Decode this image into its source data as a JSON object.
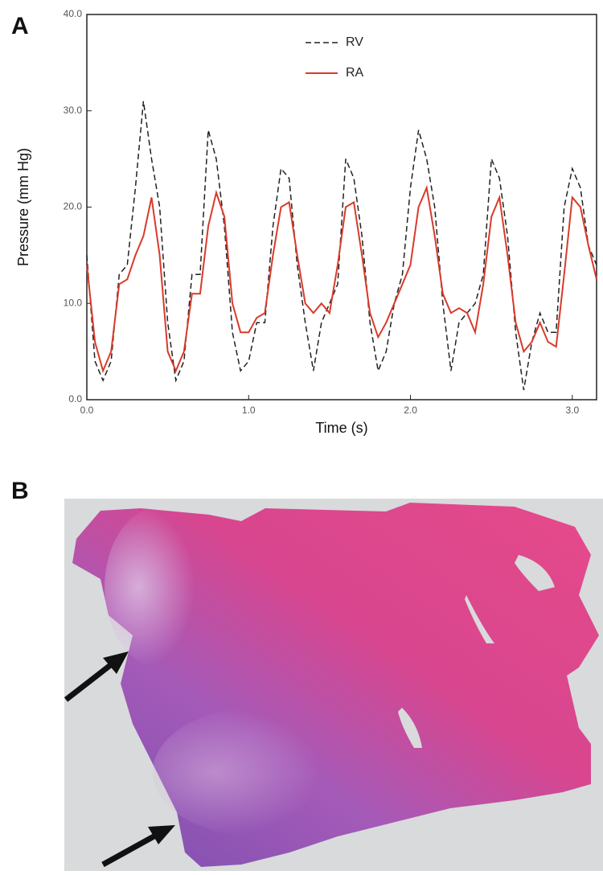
{
  "panel_labels": [
    "A",
    "B"
  ],
  "chart_data": {
    "type": "line",
    "xlabel": "Time (s)",
    "ylabel": "Pressure (mm Hg)",
    "x": [
      0,
      0.05,
      0.1,
      0.15,
      0.2,
      0.25,
      0.3,
      0.35,
      0.4,
      0.45,
      0.5,
      0.55,
      0.6,
      0.65,
      0.7,
      0.75,
      0.8,
      0.85,
      0.9,
      0.95,
      1.0,
      1.05,
      1.1,
      1.15,
      1.2,
      1.25,
      1.3,
      1.35,
      1.4,
      1.45,
      1.5,
      1.55,
      1.6,
      1.65,
      1.7,
      1.75,
      1.8,
      1.85,
      1.9,
      1.95,
      2.0,
      2.05,
      2.1,
      2.15,
      2.2,
      2.25,
      2.3,
      2.35,
      2.4,
      2.45,
      2.5,
      2.55,
      2.6,
      2.65,
      2.7,
      2.75,
      2.8,
      2.85,
      2.9,
      2.95,
      3.0,
      3.05,
      3.1,
      3.15
    ],
    "series": [
      {
        "name": "RV",
        "color": "#222222",
        "dash": true,
        "values": [
          15,
          4,
          2,
          4,
          13,
          14,
          22,
          31,
          25,
          20,
          8,
          2,
          4,
          13,
          13,
          28,
          25,
          18,
          7,
          3,
          4,
          8,
          8,
          18,
          24,
          23,
          14,
          8,
          3,
          8,
          10,
          12,
          25,
          23,
          17,
          8,
          3,
          5,
          10,
          13,
          22,
          28,
          25,
          20,
          10,
          3,
          8,
          9,
          10,
          13,
          25,
          23,
          17,
          7,
          1,
          6,
          9,
          7,
          7,
          20,
          24,
          22,
          16,
          14
        ]
      },
      {
        "name": "RA",
        "color": "#d93a2b",
        "dash": false,
        "values": [
          14,
          6,
          3,
          5,
          12,
          12.5,
          15,
          17,
          21,
          15,
          5,
          3,
          5,
          11,
          11,
          18,
          21.5,
          19,
          10,
          7,
          7,
          8.5,
          9,
          15,
          20,
          20.5,
          15,
          10,
          9,
          10,
          9,
          14,
          20,
          20.5,
          15,
          9,
          6.5,
          8,
          10,
          12,
          14,
          20,
          22,
          17,
          11,
          9,
          9.5,
          9,
          7,
          12,
          19,
          21,
          15,
          8,
          5,
          6,
          8,
          6,
          5.5,
          13,
          21,
          20,
          16,
          12.5
        ]
      }
    ],
    "xlim": [
      0,
      3.15
    ],
    "ylim": [
      0,
      40
    ],
    "xticks": [
      {
        "value": 0,
        "label": "0.0"
      },
      {
        "value": 1,
        "label": "1.0"
      },
      {
        "value": 2,
        "label": "2.0"
      },
      {
        "value": 3,
        "label": "3.0"
      }
    ],
    "yticks": [
      {
        "value": 0,
        "label": "0.0"
      },
      {
        "value": 10,
        "label": "10.0"
      },
      {
        "value": 20,
        "label": "20.0"
      },
      {
        "value": 30,
        "label": "30.0"
      },
      {
        "value": 40,
        "label": "40.0"
      }
    ],
    "grid": false,
    "legend": "upper center"
  }
}
